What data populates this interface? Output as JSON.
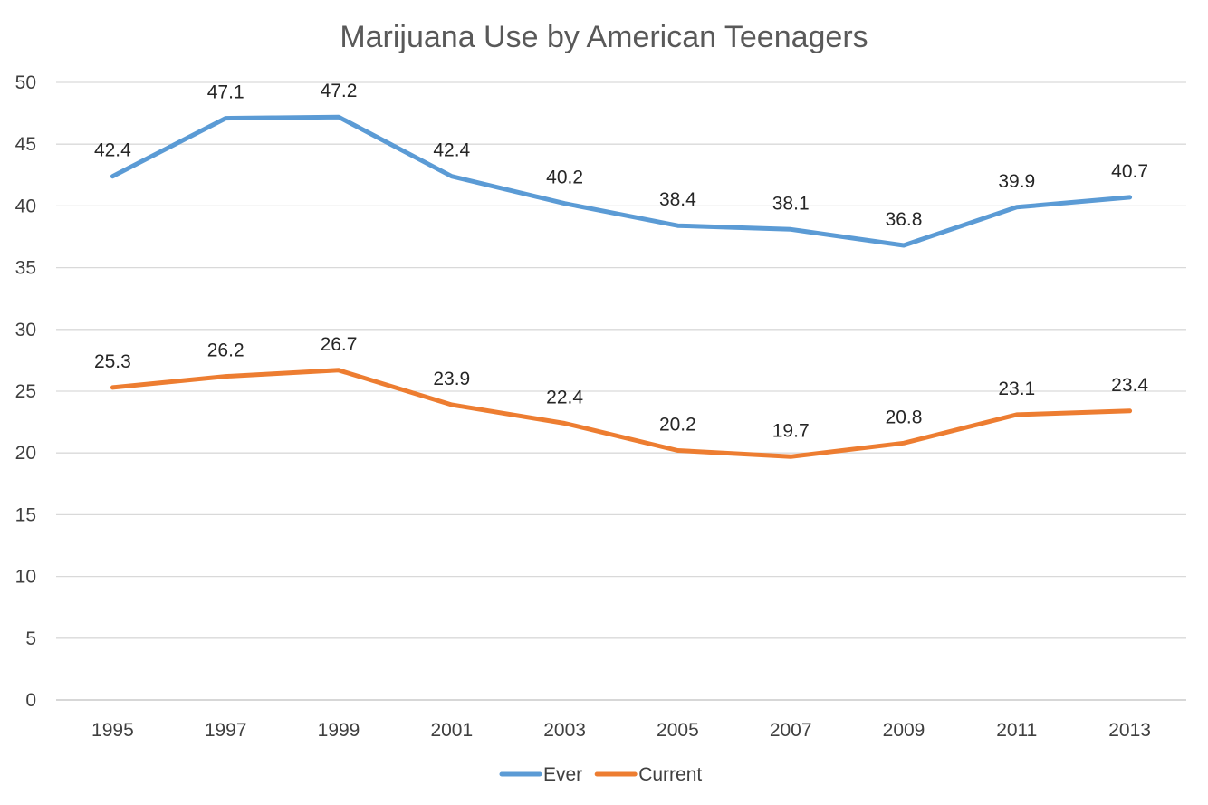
{
  "chart_data": {
    "type": "line",
    "title": "Marijuana Use by American Teenagers",
    "categories": [
      "1995",
      "1997",
      "1999",
      "2001",
      "2003",
      "2005",
      "2007",
      "2009",
      "2011",
      "2013"
    ],
    "series": [
      {
        "name": "Ever",
        "color": "#5b9bd5",
        "values": [
          42.4,
          47.1,
          47.2,
          42.4,
          40.2,
          38.4,
          38.1,
          36.8,
          39.9,
          40.7
        ]
      },
      {
        "name": "Current",
        "color": "#ed7d31",
        "values": [
          25.3,
          26.2,
          26.7,
          23.9,
          22.4,
          20.2,
          19.7,
          20.8,
          23.1,
          23.4
        ]
      }
    ],
    "y_ticks": [
      "0",
      "5",
      "10",
      "15",
      "20",
      "25",
      "30",
      "35",
      "40",
      "45",
      "50"
    ],
    "ylim": [
      0,
      50
    ],
    "grid": true,
    "legend_position": "bottom",
    "gridline_color": "#d9d9d9",
    "axis_color": "#bfbfbf"
  }
}
